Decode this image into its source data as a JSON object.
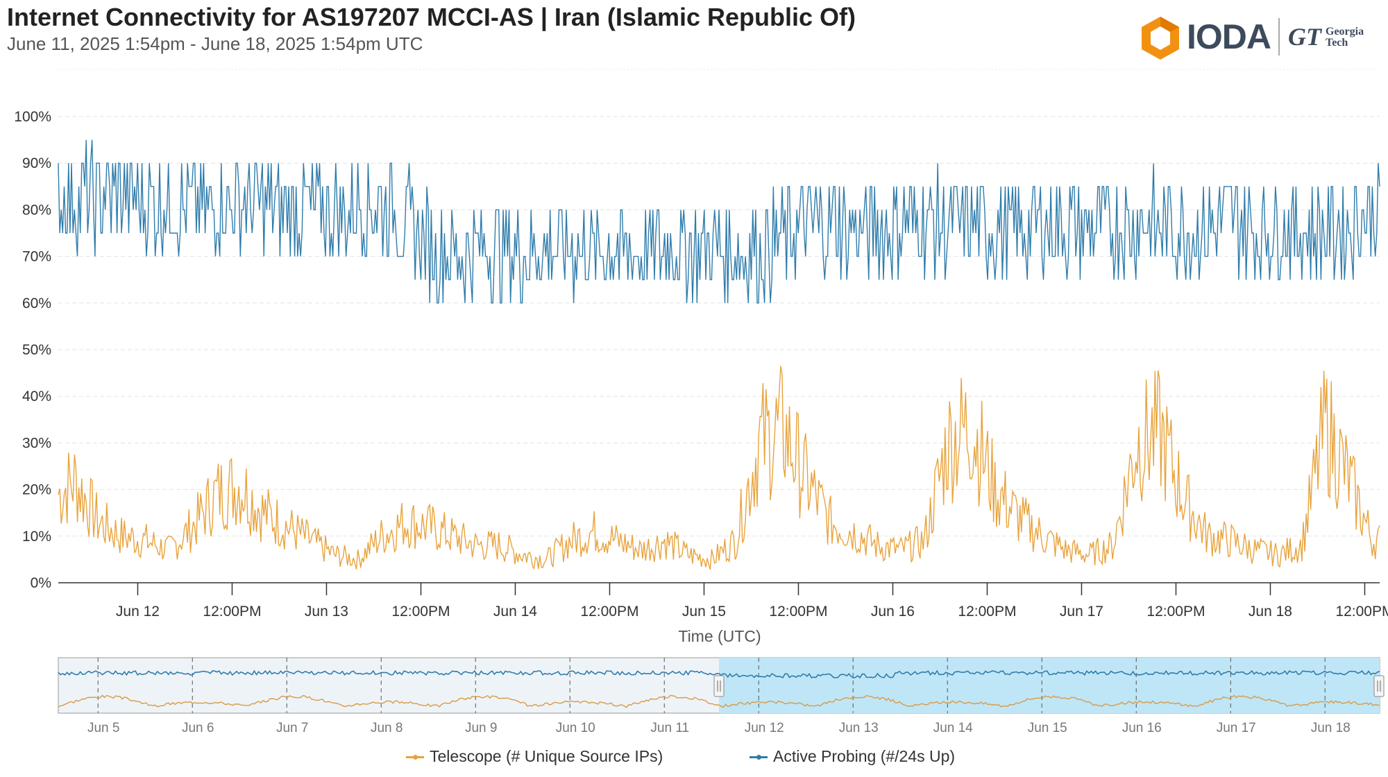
{
  "title": "Internet Connectivity for AS197207 MCCI-AS | Iran (Islamic Republic Of)",
  "subtitle": "June 11, 2025 1:54pm - June 18, 2025 1:54pm UTC",
  "logo": {
    "name": "IODA",
    "partner_mark": "GT",
    "partner_line1": "Georgia",
    "partner_line2": "Tech"
  },
  "colors": {
    "telescope": "#e8a33d",
    "active_probing": "#2f7cab",
    "grid": "#e3e3e3",
    "navigator_selected": "#bfe6f6",
    "navigator_unselected": "#eef3f7"
  },
  "chart_data": {
    "type": "line",
    "xlabel": "Time (UTC)",
    "ylabel": "",
    "ylim": [
      0,
      100
    ],
    "y_ticks": [
      "0%",
      "10%",
      "20%",
      "30%",
      "40%",
      "50%",
      "60%",
      "70%",
      "80%",
      "90%",
      "100%"
    ],
    "x_ticks": [
      "Jun 12",
      "12:00PM",
      "Jun 13",
      "12:00PM",
      "Jun 14",
      "12:00PM",
      "Jun 15",
      "12:00PM",
      "Jun 16",
      "12:00PM",
      "Jun 17",
      "12:00PM",
      "Jun 18",
      "12:00PM"
    ],
    "x_range": [
      "2025-06-11 13:54",
      "2025-06-18 13:54"
    ],
    "grid": true,
    "legend_position": "bottom-center",
    "series": [
      {
        "name": "Telescope (# Unique Source IPs)",
        "color": "#e8a33d",
        "points": [
          [
            "2025-06-11 14:00",
            19
          ],
          [
            "2025-06-11 16:00",
            22
          ],
          [
            "2025-06-11 19:00",
            13
          ],
          [
            "2025-06-11 22:00",
            10
          ],
          [
            "2025-06-12 01:00",
            9
          ],
          [
            "2025-06-12 04:00",
            7
          ],
          [
            "2025-06-12 07:00",
            12
          ],
          [
            "2025-06-12 10:00",
            19
          ],
          [
            "2025-06-12 13:00",
            21
          ],
          [
            "2025-06-12 16:00",
            15
          ],
          [
            "2025-06-12 19:00",
            12
          ],
          [
            "2025-06-12 22:00",
            9
          ],
          [
            "2025-06-13 01:00",
            6
          ],
          [
            "2025-06-13 04:00",
            5
          ],
          [
            "2025-06-13 07:00",
            10
          ],
          [
            "2025-06-13 10:00",
            13
          ],
          [
            "2025-06-13 13:00",
            12
          ],
          [
            "2025-06-13 16:00",
            10
          ],
          [
            "2025-06-13 19:00",
            8
          ],
          [
            "2025-06-13 22:00",
            8
          ],
          [
            "2025-06-14 01:00",
            6
          ],
          [
            "2025-06-14 04:00",
            5
          ],
          [
            "2025-06-14 07:00",
            9
          ],
          [
            "2025-06-14 10:00",
            11
          ],
          [
            "2025-06-14 13:00",
            9
          ],
          [
            "2025-06-14 16:00",
            7
          ],
          [
            "2025-06-14 19:00",
            9
          ],
          [
            "2025-06-14 22:00",
            6
          ],
          [
            "2025-06-15 01:00",
            5
          ],
          [
            "2025-06-15 04:00",
            9
          ],
          [
            "2025-06-15 07:00",
            30
          ],
          [
            "2025-06-15 10:00",
            33
          ],
          [
            "2025-06-15 13:00",
            22
          ],
          [
            "2025-06-15 16:00",
            13
          ],
          [
            "2025-06-15 19:00",
            11
          ],
          [
            "2025-06-15 22:00",
            8
          ],
          [
            "2025-06-16 01:00",
            7
          ],
          [
            "2025-06-16 04:00",
            9
          ],
          [
            "2025-06-16 07:00",
            30
          ],
          [
            "2025-06-16 10:00",
            34
          ],
          [
            "2025-06-16 13:00",
            20
          ],
          [
            "2025-06-16 16:00",
            14
          ],
          [
            "2025-06-16 19:00",
            10
          ],
          [
            "2025-06-16 22:00",
            7
          ],
          [
            "2025-06-17 01:00",
            6
          ],
          [
            "2025-06-17 04:00",
            8
          ],
          [
            "2025-06-17 07:00",
            30
          ],
          [
            "2025-06-17 10:00",
            32
          ],
          [
            "2025-06-17 13:00",
            18
          ],
          [
            "2025-06-17 16:00",
            10
          ],
          [
            "2025-06-17 19:00",
            9
          ],
          [
            "2025-06-17 22:00",
            7
          ],
          [
            "2025-06-18 01:00",
            6
          ],
          [
            "2025-06-18 04:00",
            8
          ],
          [
            "2025-06-18 07:00",
            34
          ],
          [
            "2025-06-18 10:00",
            22
          ],
          [
            "2025-06-18 13:00",
            9
          ]
        ]
      },
      {
        "name": "Active Probing (#/24s Up)",
        "color": "#2f7cab",
        "points": [
          [
            "2025-06-11 14:00",
            82
          ],
          [
            "2025-06-11 20:00",
            83
          ],
          [
            "2025-06-12 02:00",
            82
          ],
          [
            "2025-06-12 08:00",
            81
          ],
          [
            "2025-06-12 14:00",
            82
          ],
          [
            "2025-06-12 20:00",
            80
          ],
          [
            "2025-06-13 02:00",
            80
          ],
          [
            "2025-06-13 08:00",
            81
          ],
          [
            "2025-06-13 14:00",
            71
          ],
          [
            "2025-06-13 20:00",
            71
          ],
          [
            "2025-06-14 02:00",
            72
          ],
          [
            "2025-06-14 08:00",
            71
          ],
          [
            "2025-06-14 14:00",
            71
          ],
          [
            "2025-06-14 20:00",
            72
          ],
          [
            "2025-06-15 02:00",
            71
          ],
          [
            "2025-06-15 08:00",
            72
          ],
          [
            "2025-06-15 14:00",
            77
          ],
          [
            "2025-06-15 20:00",
            76
          ],
          [
            "2025-06-16 02:00",
            77
          ],
          [
            "2025-06-16 08:00",
            77
          ],
          [
            "2025-06-16 14:00",
            76
          ],
          [
            "2025-06-16 20:00",
            77
          ],
          [
            "2025-06-17 02:00",
            76
          ],
          [
            "2025-06-17 08:00",
            77
          ],
          [
            "2025-06-17 14:00",
            76
          ],
          [
            "2025-06-17 20:00",
            77
          ],
          [
            "2025-06-18 02:00",
            76
          ],
          [
            "2025-06-18 08:00",
            75
          ],
          [
            "2025-06-18 13:00",
            80
          ]
        ]
      }
    ]
  },
  "navigator": {
    "labels": [
      "Jun 5",
      "Jun 6",
      "Jun 7",
      "Jun 8",
      "Jun 9",
      "Jun 10",
      "Jun 11",
      "Jun 12",
      "Jun 13",
      "Jun 14",
      "Jun 15",
      "Jun 16",
      "Jun 17",
      "Jun 18"
    ],
    "range": [
      "2025-06-04 13:54",
      "2025-06-18 13:54"
    ],
    "selected": [
      "2025-06-11 13:54",
      "2025-06-18 13:54"
    ]
  },
  "legend": [
    {
      "label": "Telescope (# Unique Source IPs)"
    },
    {
      "label": "Active Probing (#/24s Up)"
    }
  ]
}
